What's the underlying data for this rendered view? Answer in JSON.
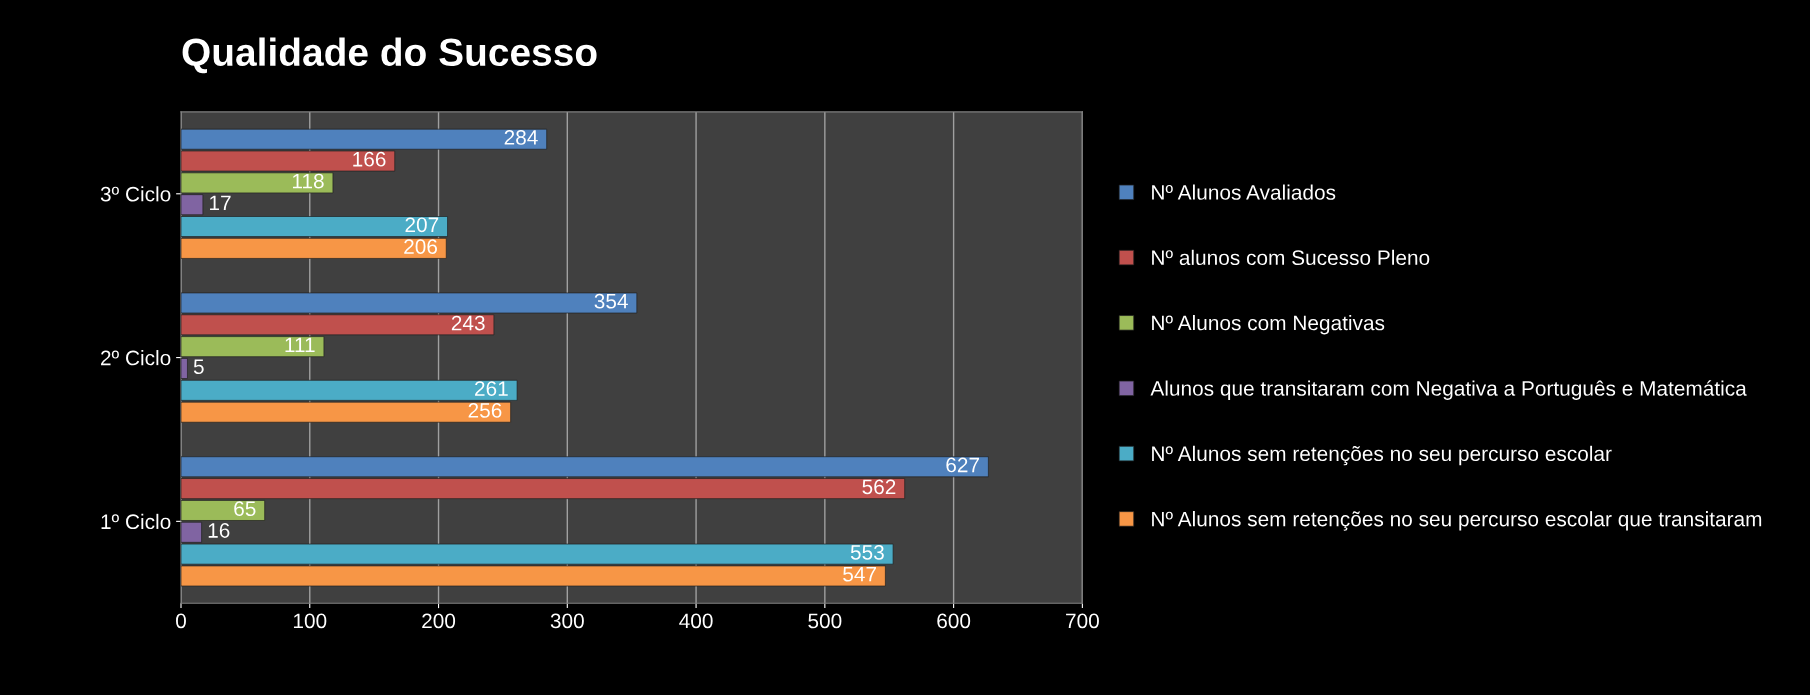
{
  "chart_data": {
    "type": "bar",
    "orientation": "horizontal",
    "title": "Qualidade do Sucesso",
    "categories": [
      "3º Ciclo",
      "2º Ciclo",
      "1º Ciclo"
    ],
    "series": [
      {
        "name": "Nº Alunos Avaliados",
        "color": "#4f81bd",
        "values": [
          284,
          354,
          627
        ]
      },
      {
        "name": "Nº alunos com Sucesso Pleno",
        "color": "#c0504d",
        "values": [
          166,
          243,
          562
        ]
      },
      {
        "name": "Nº Alunos com Negativas",
        "color": "#9bbb59",
        "values": [
          118,
          111,
          65
        ]
      },
      {
        "name": "Alunos que transitaram com Negativa a Português e Matemática",
        "color": "#8064a2",
        "values": [
          17,
          5,
          16
        ]
      },
      {
        "name": "Nº Alunos sem retenções no seu percurso escolar",
        "color": "#4bacc6",
        "values": [
          207,
          261,
          553
        ]
      },
      {
        "name": "Nº Alunos sem retenções no seu percurso escolar que transitaram",
        "color": "#f79646",
        "values": [
          206,
          256,
          547
        ]
      }
    ],
    "xlim": [
      0,
      700
    ],
    "xticks": [
      0,
      100,
      200,
      300,
      400,
      500,
      600,
      700
    ],
    "grid": "x",
    "legend": "right",
    "data_labels": true
  }
}
